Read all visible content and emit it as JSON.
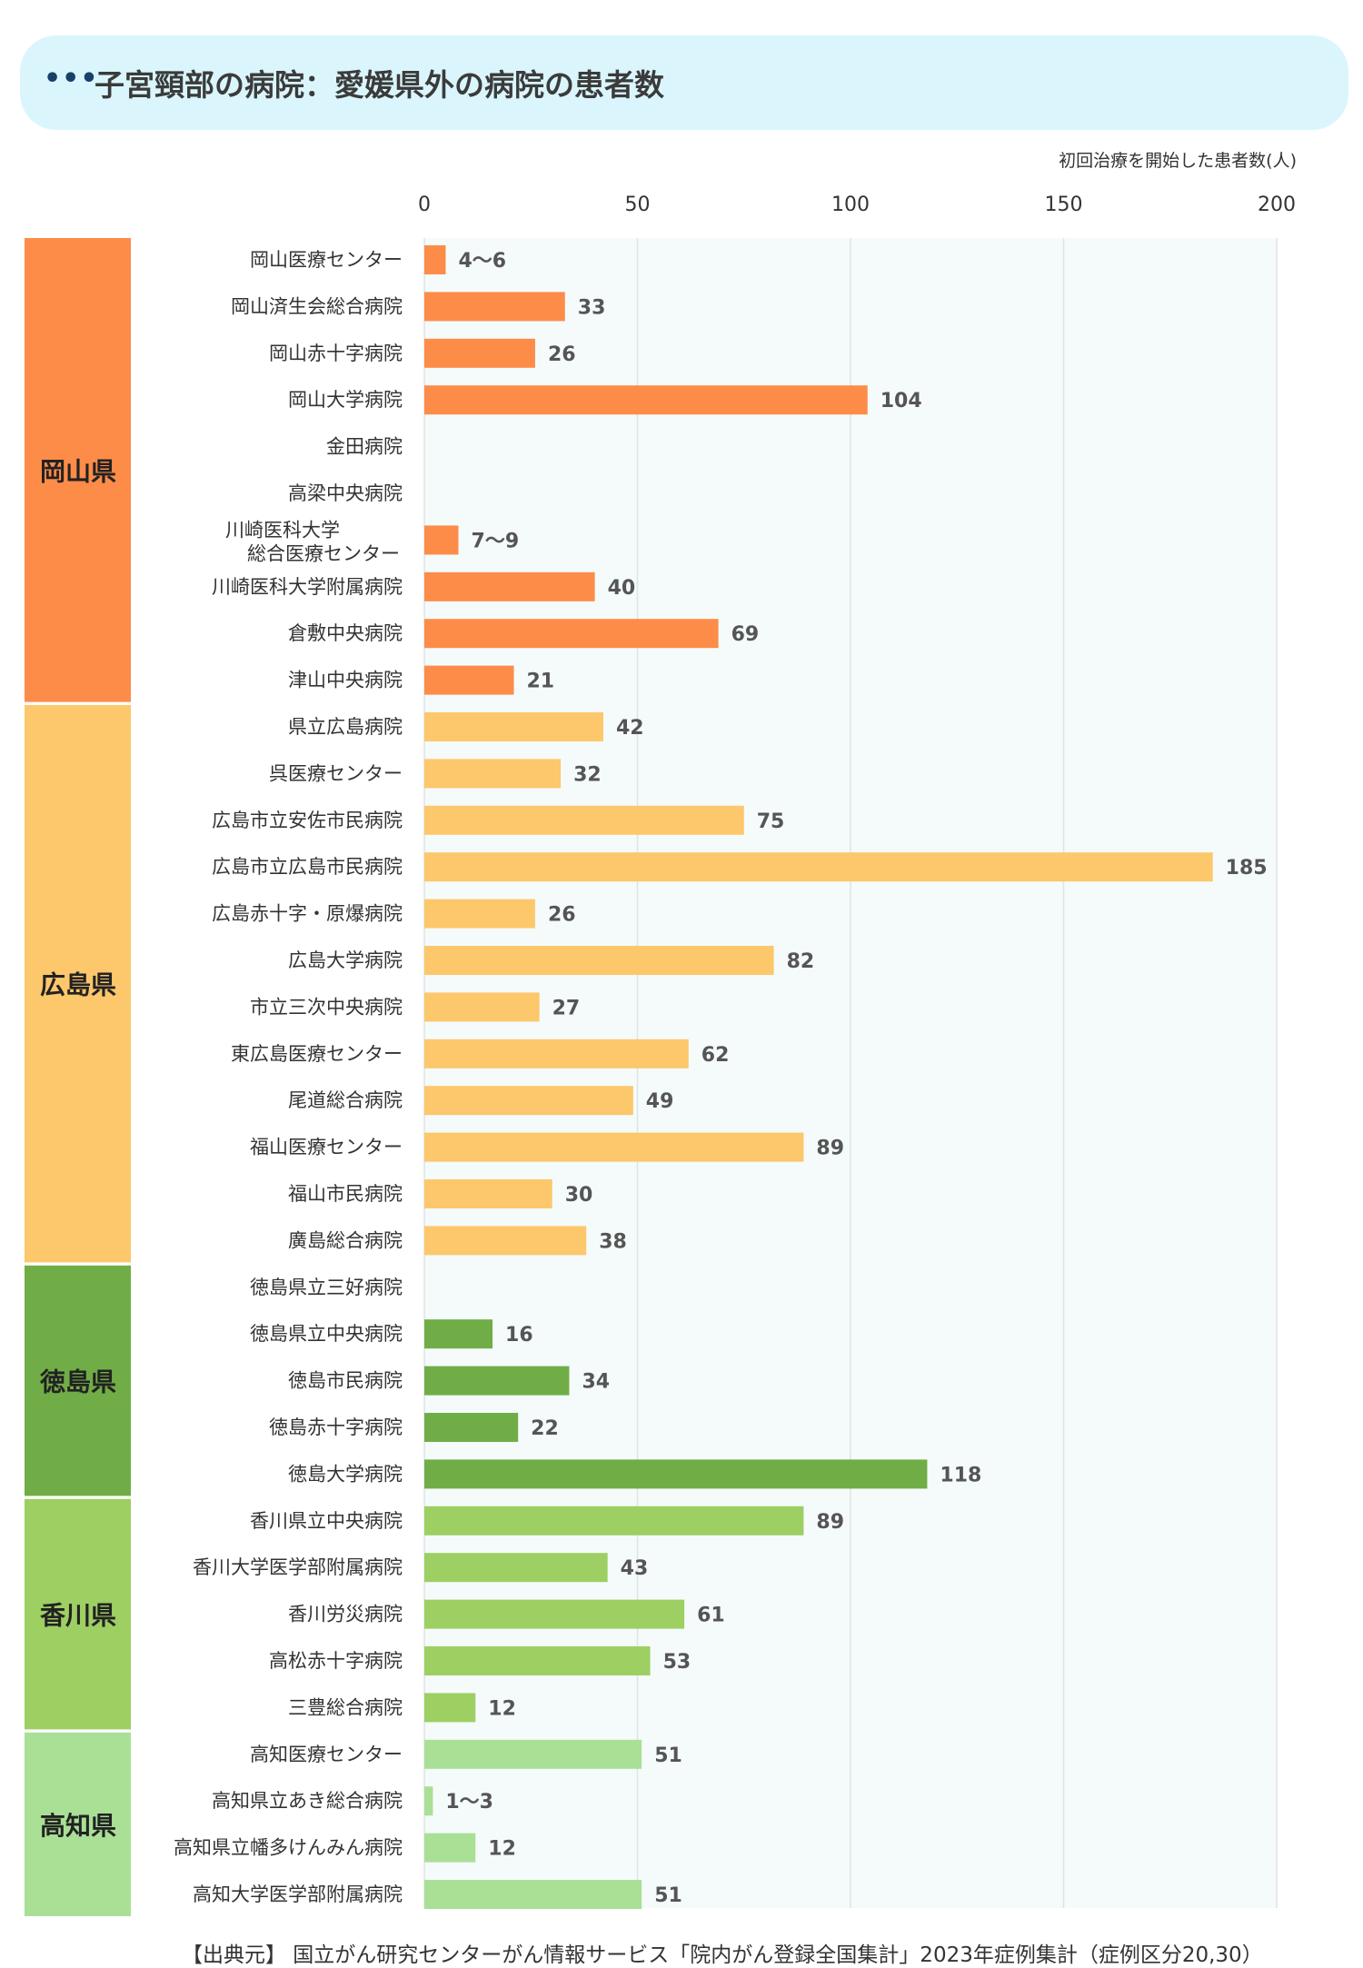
{
  "header": {
    "icon": "ellipsis-icon",
    "title": "子宮頸部の病院：愛媛県外の病院の患者数"
  },
  "unit_label": "初回治療を開始した患者数(人)",
  "source": "【出典元】 国立がん研究センターがん情報サービス「院内がん登録全国集計」2023年症例集計（症例区分20,30）",
  "chart_data": {
    "type": "bar",
    "orientation": "horizontal",
    "xlim": [
      0,
      200
    ],
    "xticks": [
      0,
      50,
      100,
      150,
      200
    ],
    "grid": true,
    "groups": [
      {
        "name": "岡山県",
        "color": "#fd8c49",
        "items": [
          {
            "label": "岡山医療センター",
            "value": 5,
            "display": "4～6"
          },
          {
            "label": "岡山済生会総合病院",
            "value": 33,
            "display": "33"
          },
          {
            "label": "岡山赤十字病院",
            "value": 26,
            "display": "26"
          },
          {
            "label": "岡山大学病院",
            "value": 104,
            "display": "104"
          },
          {
            "label": "金田病院",
            "value": null,
            "display": ""
          },
          {
            "label": "高梁中央病院",
            "value": null,
            "display": ""
          },
          {
            "label": [
              "川崎医科大学",
              "総合医療センター"
            ],
            "value": 8,
            "display": "7～9"
          },
          {
            "label": "川崎医科大学附属病院",
            "value": 40,
            "display": "40"
          },
          {
            "label": "倉敷中央病院",
            "value": 69,
            "display": "69"
          },
          {
            "label": "津山中央病院",
            "value": 21,
            "display": "21"
          }
        ]
      },
      {
        "name": "広島県",
        "color": "#fdc76b",
        "items": [
          {
            "label": "県立広島病院",
            "value": 42,
            "display": "42"
          },
          {
            "label": "呉医療センター",
            "value": 32,
            "display": "32"
          },
          {
            "label": "広島市立安佐市民病院",
            "value": 75,
            "display": "75"
          },
          {
            "label": "広島市立広島市民病院",
            "value": 185,
            "display": "185"
          },
          {
            "label": "広島赤十字・原爆病院",
            "value": 26,
            "display": "26"
          },
          {
            "label": "広島大学病院",
            "value": 82,
            "display": "82"
          },
          {
            "label": "市立三次中央病院",
            "value": 27,
            "display": "27"
          },
          {
            "label": "東広島医療センター",
            "value": 62,
            "display": "62"
          },
          {
            "label": "尾道総合病院",
            "value": 49,
            "display": "49"
          },
          {
            "label": "福山医療センター",
            "value": 89,
            "display": "89"
          },
          {
            "label": "福山市民病院",
            "value": 30,
            "display": "30"
          },
          {
            "label": "廣島総合病院",
            "value": 38,
            "display": "38"
          }
        ]
      },
      {
        "name": "徳島県",
        "color": "#70ad47",
        "items": [
          {
            "label": "徳島県立三好病院",
            "value": null,
            "display": ""
          },
          {
            "label": "徳島県立中央病院",
            "value": 16,
            "display": "16"
          },
          {
            "label": "徳島市民病院",
            "value": 34,
            "display": "34"
          },
          {
            "label": "徳島赤十字病院",
            "value": 22,
            "display": "22"
          },
          {
            "label": "徳島大学病院",
            "value": 118,
            "display": "118"
          }
        ]
      },
      {
        "name": "香川県",
        "color": "#9dcf63",
        "items": [
          {
            "label": "香川県立中央病院",
            "value": 89,
            "display": "89"
          },
          {
            "label": "香川大学医学部附属病院",
            "value": 43,
            "display": "43"
          },
          {
            "label": "香川労災病院",
            "value": 61,
            "display": "61"
          },
          {
            "label": "高松赤十字病院",
            "value": 53,
            "display": "53"
          },
          {
            "label": "三豊総合病院",
            "value": 12,
            "display": "12"
          }
        ]
      },
      {
        "name": "高知県",
        "color": "#a9e096",
        "items": [
          {
            "label": "高知医療センター",
            "value": 51,
            "display": "51"
          },
          {
            "label": "高知県立あき総合病院",
            "value": 2,
            "display": "1～3"
          },
          {
            "label": "高知県立幡多けんみん病院",
            "value": 12,
            "display": "12"
          },
          {
            "label": "高知大学医学部附属病院",
            "value": 51,
            "display": "51"
          }
        ]
      }
    ]
  }
}
